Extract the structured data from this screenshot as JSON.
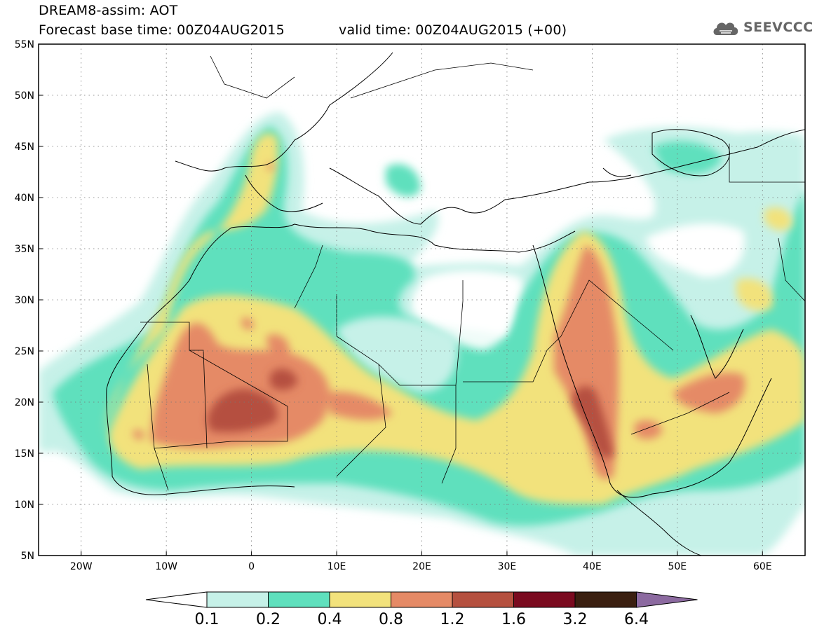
{
  "header": {
    "line1": "DREAM8-assim: AOT",
    "line2": "Forecast base time: 00Z04AUG2015",
    "line3": "valid time: 00Z04AUG2015 (+00)",
    "logo": "SEEVCCC"
  },
  "map": {
    "lon_range": [
      -25,
      65
    ],
    "lat_range": [
      5,
      55
    ],
    "x_ticks": [
      "20W",
      "10W",
      "0",
      "10E",
      "20E",
      "30E",
      "40E",
      "50E",
      "60E"
    ],
    "x_tick_values": [
      -20,
      -10,
      0,
      10,
      20,
      30,
      40,
      50,
      60
    ],
    "y_ticks": [
      "55N",
      "50N",
      "45N",
      "40N",
      "35N",
      "30N",
      "25N",
      "20N",
      "15N",
      "10N",
      "5N"
    ],
    "y_tick_values": [
      55,
      50,
      45,
      40,
      35,
      30,
      25,
      20,
      15,
      10,
      5
    ],
    "grid": "dotted",
    "field": "AOT"
  },
  "colorbar": {
    "labels": [
      "0.1",
      "0.2",
      "0.4",
      "0.8",
      "1.2",
      "1.6",
      "3.2",
      "6.4"
    ],
    "colors": [
      "#ffffff",
      "#c6f1e8",
      "#5fe0bd",
      "#f2e27c",
      "#e58a66",
      "#b5503f",
      "#7a0a1f",
      "#3a1f10",
      "#8c6aa0"
    ]
  }
}
